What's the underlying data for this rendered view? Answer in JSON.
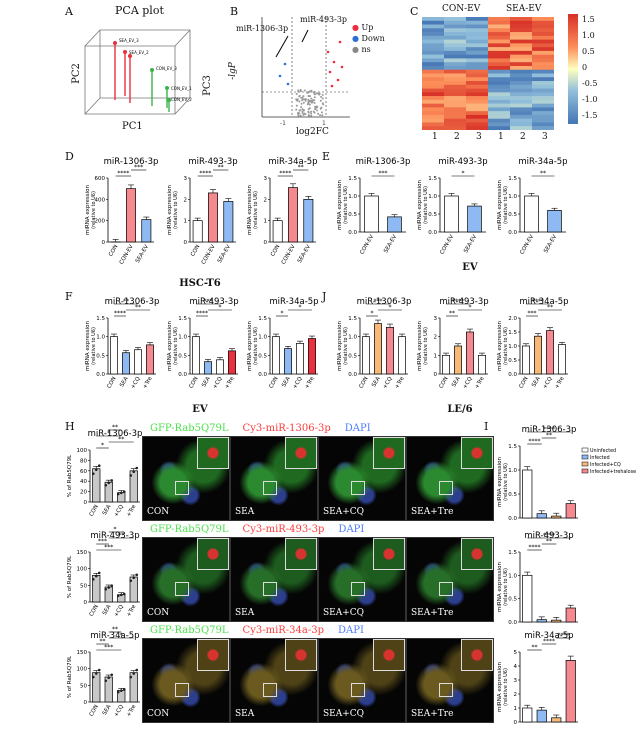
{
  "panels": {
    "A": {
      "label": "A",
      "title": "PCA plot",
      "axes": [
        "PC1",
        "PC2",
        "PC3"
      ],
      "points": [
        "SEA_EV_1",
        "SEA_EV_2",
        "SEA_EV_3",
        "CON_EV_1",
        "CON_EV_2",
        "CON_EV_3"
      ]
    },
    "B": {
      "label": "B",
      "ylabel": "-lgP",
      "xlabel": "log2FC",
      "annotations": [
        "miR-1306-3p",
        "miR-493-3p"
      ],
      "legend": [
        {
          "name": "Up",
          "color": "#e8303f"
        },
        {
          "name": "Down",
          "color": "#2e6fd6"
        },
        {
          "name": "ns",
          "color": "#888888"
        }
      ]
    },
    "C": {
      "label": "C",
      "groups": [
        "CON-EV",
        "SEA-EV"
      ],
      "columns": [
        "1",
        "2",
        "3",
        "1",
        "2",
        "3"
      ],
      "scale": [
        "1.5",
        "1.0",
        "0.5",
        "0",
        "-0.5",
        "-1.0",
        "-1.5"
      ]
    },
    "D": {
      "label": "D",
      "caption": "HSC-T6"
    },
    "E": {
      "label": "E",
      "caption": "EV"
    },
    "F": {
      "label": "F",
      "caption": "EV"
    },
    "J": {
      "label": "J",
      "caption": "LE/6"
    },
    "H": {
      "label": "H"
    },
    "I": {
      "label": "I"
    },
    "G": {
      "rows": [
        {
          "green": "GFP-Rab5Q79L",
          "red": "Cy3-miR-1306-3p",
          "blue": "DAPI"
        },
        {
          "green": "GFP-Rab5Q79L",
          "red": "Cy3-miR-493-3p",
          "blue": "DAPI"
        },
        {
          "green": "GFP-Rab5Q79L",
          "red": "Cy3-miR-34a-3p",
          "blue": "DAPI"
        }
      ],
      "cols": [
        "CON",
        "SEA",
        "SEA+CQ",
        "SEA+Tre"
      ]
    }
  },
  "common": {
    "ylab": "miRNA expression",
    "ylab2": "(relative to U6)",
    "hlab": "% of Rab5Q79L"
  },
  "chart_data": [
    {
      "id": "D1",
      "type": "bar",
      "title": "miR-1306-3p",
      "categories": [
        "CON",
        "CON-EV",
        "SEA-EV"
      ],
      "values": [
        1,
        500,
        210
      ],
      "ylim": [
        0,
        600
      ],
      "colors": [
        "#ffffff",
        "#f48a8f",
        "#8fb9f2"
      ],
      "sig": [
        [
          "****",
          0,
          1
        ],
        [
          "***",
          1,
          2
        ]
      ],
      "yticks": [
        "0",
        "200",
        "400",
        "600"
      ]
    },
    {
      "id": "D2",
      "type": "bar",
      "title": "miR-493-3p",
      "categories": [
        "CON",
        "CON-EV",
        "SEA-EV"
      ],
      "values": [
        1,
        2.3,
        1.9
      ],
      "ylim": [
        0,
        3
      ],
      "colors": [
        "#ffffff",
        "#f48a8f",
        "#8fb9f2"
      ],
      "sig": [
        [
          "****",
          0,
          1
        ],
        [
          "**",
          1,
          2
        ]
      ],
      "yticks": [
        "0",
        "1",
        "2",
        "3"
      ]
    },
    {
      "id": "D3",
      "type": "bar",
      "title": "miR-34a-5p",
      "categories": [
        "CON",
        "CON-EV",
        "SEA-EV"
      ],
      "values": [
        1,
        2.55,
        2.0
      ],
      "ylim": [
        0,
        3
      ],
      "colors": [
        "#ffffff",
        "#f48a8f",
        "#8fb9f2"
      ],
      "sig": [
        [
          "****",
          0,
          1
        ],
        [
          "**",
          1,
          2
        ]
      ],
      "yticks": [
        "0",
        "1",
        "2",
        "3"
      ]
    },
    {
      "id": "E1",
      "type": "bar",
      "title": "miR-1306-3p",
      "categories": [
        "CON-EV",
        "SEA-EV"
      ],
      "values": [
        1,
        0.42
      ],
      "ylim": [
        0,
        1.5
      ],
      "colors": [
        "#ffffff",
        "#8fb9f2"
      ],
      "sig": [
        [
          "***",
          0,
          1
        ]
      ],
      "yticks": [
        "0.0",
        "0.5",
        "1.0",
        "1.5"
      ]
    },
    {
      "id": "E2",
      "type": "bar",
      "title": "miR-493-3p",
      "categories": [
        "CON-EV",
        "SEA-EV"
      ],
      "values": [
        1,
        0.72
      ],
      "ylim": [
        0,
        1.5
      ],
      "colors": [
        "#ffffff",
        "#8fb9f2"
      ],
      "sig": [
        [
          "*",
          0,
          1
        ]
      ],
      "yticks": [
        "0.0",
        "0.5",
        "1.0",
        "1.5"
      ]
    },
    {
      "id": "E3",
      "type": "bar",
      "title": "miR-34a-5p",
      "categories": [
        "CON-EV",
        "SEA-EV"
      ],
      "values": [
        1,
        0.6
      ],
      "ylim": [
        0,
        1.5
      ],
      "colors": [
        "#ffffff",
        "#8fb9f2"
      ],
      "sig": [
        [
          "**",
          0,
          1
        ]
      ],
      "yticks": [
        "0.0",
        "0.5",
        "1.0",
        "1.5"
      ]
    },
    {
      "id": "F1",
      "type": "bar",
      "title": "miR-1306-3p",
      "categories": [
        "CON",
        "SEA",
        "+CQ",
        "+Tre"
      ],
      "values": [
        1,
        0.57,
        0.65,
        0.78
      ],
      "ylim": [
        0,
        1.5
      ],
      "colors": [
        "#ffffff",
        "#8fb9f2",
        "#ffffff",
        "#f48a8f"
      ],
      "sig": [
        [
          "****",
          0,
          1
        ],
        [
          "**",
          1,
          3
        ],
        [
          "**",
          0,
          2
        ]
      ],
      "yticks": [
        "0.0",
        "0.5",
        "1.0",
        "1.5"
      ]
    },
    {
      "id": "F2",
      "type": "bar",
      "title": "miR-493-3p",
      "categories": [
        "CON",
        "SEA",
        "+CQ",
        "+Tre"
      ],
      "values": [
        1,
        0.33,
        0.38,
        0.62
      ],
      "ylim": [
        0,
        1.5
      ],
      "colors": [
        "#ffffff",
        "#8fb9f2",
        "#ffffff",
        "#e8303f"
      ],
      "sig": [
        [
          "****",
          0,
          1
        ],
        [
          "*",
          1,
          3
        ],
        [
          "***",
          0,
          2
        ]
      ],
      "yticks": [
        "0.0",
        "0.5",
        "1.0",
        "1.5"
      ]
    },
    {
      "id": "F3",
      "type": "bar",
      "title": "miR-34a-5p",
      "categories": [
        "CON",
        "SEA",
        "+CQ",
        "+Tre"
      ],
      "values": [
        1,
        0.68,
        0.82,
        0.95
      ],
      "ylim": [
        0,
        1.5
      ],
      "colors": [
        "#ffffff",
        "#8fb9f2",
        "#ffffff",
        "#e8303f"
      ],
      "sig": [
        [
          "*",
          0,
          1
        ],
        [
          "*",
          1,
          3
        ]
      ],
      "yticks": [
        "0.0",
        "0.5",
        "1.0",
        "1.5"
      ]
    },
    {
      "id": "J1",
      "type": "bar",
      "title": "miR-1306-3p",
      "categories": [
        "CON",
        "SEA",
        "+CQ",
        "+Tre"
      ],
      "values": [
        1,
        1.35,
        1.25,
        1.0
      ],
      "ylim": [
        0,
        1.5
      ],
      "colors": [
        "#ffffff",
        "#f6b97a",
        "#f48a8f",
        "#ffffff"
      ],
      "sig": [
        [
          "*",
          0,
          1
        ],
        [
          "*",
          1,
          3
        ],
        [
          "***",
          0,
          2
        ]
      ],
      "yticks": [
        "0.0",
        "0.5",
        "1.0",
        "1.5"
      ]
    },
    {
      "id": "J2",
      "type": "bar",
      "title": "miR-493-3p",
      "categories": [
        "CON",
        "SEA",
        "+CQ",
        "+Tre"
      ],
      "values": [
        1,
        1.5,
        2.25,
        1.0
      ],
      "ylim": [
        0,
        3
      ],
      "colors": [
        "#ffffff",
        "#f6b97a",
        "#f48a8f",
        "#ffffff"
      ],
      "sig": [
        [
          "**",
          0,
          1
        ],
        [
          "*",
          1,
          3
        ],
        [
          "****",
          0,
          2
        ]
      ],
      "yticks": [
        "0",
        "1",
        "2",
        "3"
      ]
    },
    {
      "id": "J3",
      "type": "bar",
      "title": "miR-34a-5p",
      "categories": [
        "CON",
        "SEA",
        "+CQ",
        "+Tre"
      ],
      "values": [
        1,
        1.35,
        1.55,
        1.05
      ],
      "ylim": [
        0,
        2
      ],
      "colors": [
        "#ffffff",
        "#f6b97a",
        "#f48a8f",
        "#ffffff"
      ],
      "sig": [
        [
          "***",
          0,
          1
        ],
        [
          "**",
          1,
          3
        ],
        [
          "****",
          0,
          2
        ]
      ],
      "yticks": [
        "0.0",
        "0.5",
        "1.0",
        "1.5",
        "2.0"
      ]
    },
    {
      "id": "H1",
      "type": "bar",
      "title": "miR-1306-3p",
      "categories": [
        "CON",
        "SEA",
        "+CQ",
        "+Tre"
      ],
      "values": [
        64,
        38,
        18,
        60
      ],
      "ylim": [
        0,
        100
      ],
      "colors": [
        "#c8c8c8",
        "#c8c8c8",
        "#c8c8c8",
        "#c8c8c8"
      ],
      "sig": [
        [
          "*",
          0,
          1
        ],
        [
          "**",
          1,
          3
        ],
        [
          "*",
          0,
          2
        ],
        [
          "**",
          1,
          2
        ]
      ],
      "yticks": [
        "0",
        "20",
        "40",
        "60",
        "80",
        "100"
      ]
    },
    {
      "id": "H2",
      "type": "bar",
      "title": "miR-493-3p",
      "categories": [
        "CON",
        "SEA",
        "+CQ",
        "+Tre"
      ],
      "values": [
        80,
        45,
        22,
        75
      ],
      "ylim": [
        0,
        150
      ],
      "colors": [
        "#c8c8c8",
        "#c8c8c8",
        "#c8c8c8",
        "#c8c8c8"
      ],
      "sig": [
        [
          "***",
          0,
          2
        ],
        [
          "***",
          0,
          1
        ],
        [
          "**",
          1,
          3
        ],
        [
          "*",
          1,
          2
        ]
      ],
      "yticks": [
        "0",
        "50",
        "100",
        "150"
      ]
    },
    {
      "id": "H3",
      "type": "bar",
      "title": "miR-34a-5p",
      "categories": [
        "CON",
        "SEA",
        "+CQ",
        "+Tre"
      ],
      "values": [
        88,
        75,
        35,
        88
      ],
      "ylim": [
        0,
        150
      ],
      "colors": [
        "#c8c8c8",
        "#c8c8c8",
        "#c8c8c8",
        "#c8c8c8"
      ],
      "sig": [
        [
          "***",
          0,
          2
        ],
        [
          "**",
          0,
          1
        ],
        [
          "*",
          1,
          3
        ],
        [
          "**",
          1,
          2
        ]
      ],
      "yticks": [
        "0",
        "50",
        "100",
        "150"
      ]
    },
    {
      "id": "I1",
      "type": "bar",
      "title": "miR-1306-3p",
      "categories": [
        "Uninfected",
        "Infected",
        "Infected+CQ",
        "Infected+trehalose"
      ],
      "values": [
        1.0,
        0.09,
        0.04,
        0.3
      ],
      "ylim": [
        0,
        1.5
      ],
      "colors": [
        "#ffffff",
        "#8fb9f2",
        "#f6b97a",
        "#f48a8f"
      ],
      "sig": [
        [
          "****",
          0,
          1
        ],
        [
          "**",
          1,
          2
        ],
        [
          "****",
          0,
          3
        ]
      ],
      "yticks": [
        "0.0",
        "0.5",
        "1.0",
        "1.5"
      ],
      "legend": [
        "Uninfected",
        "Infected",
        "Infected+CQ",
        "Infected+trehalose"
      ]
    },
    {
      "id": "I2",
      "type": "bar",
      "title": "miR-493-3p",
      "categories": [
        "Uninfected",
        "Infected",
        "Infected+CQ",
        "Infected+trehalose"
      ],
      "values": [
        1.0,
        0.05,
        0.04,
        0.3
      ],
      "ylim": [
        0,
        1.5
      ],
      "colors": [
        "#ffffff",
        "#8fb9f2",
        "#f6b97a",
        "#f48a8f"
      ],
      "sig": [
        [
          "****",
          0,
          1
        ],
        [
          "**",
          1,
          2
        ],
        [
          "****",
          0,
          3
        ]
      ],
      "yticks": [
        "0.0",
        "0.5",
        "1.0",
        "1.5"
      ]
    },
    {
      "id": "I3",
      "type": "bar",
      "title": "miR-34a-5p",
      "categories": [
        "Uninfected",
        "Infected",
        "Infected+CQ",
        "Infected+trehalose"
      ],
      "values": [
        1.0,
        0.85,
        0.3,
        4.4
      ],
      "ylim": [
        0,
        5
      ],
      "colors": [
        "#ffffff",
        "#8fb9f2",
        "#f6b97a",
        "#f48a8f"
      ],
      "sig": [
        [
          "**",
          0,
          1
        ],
        [
          "****",
          1,
          2
        ],
        [
          "****",
          2,
          3
        ]
      ],
      "yticks": [
        "0",
        "1",
        "2",
        "3",
        "4",
        "5"
      ]
    }
  ]
}
